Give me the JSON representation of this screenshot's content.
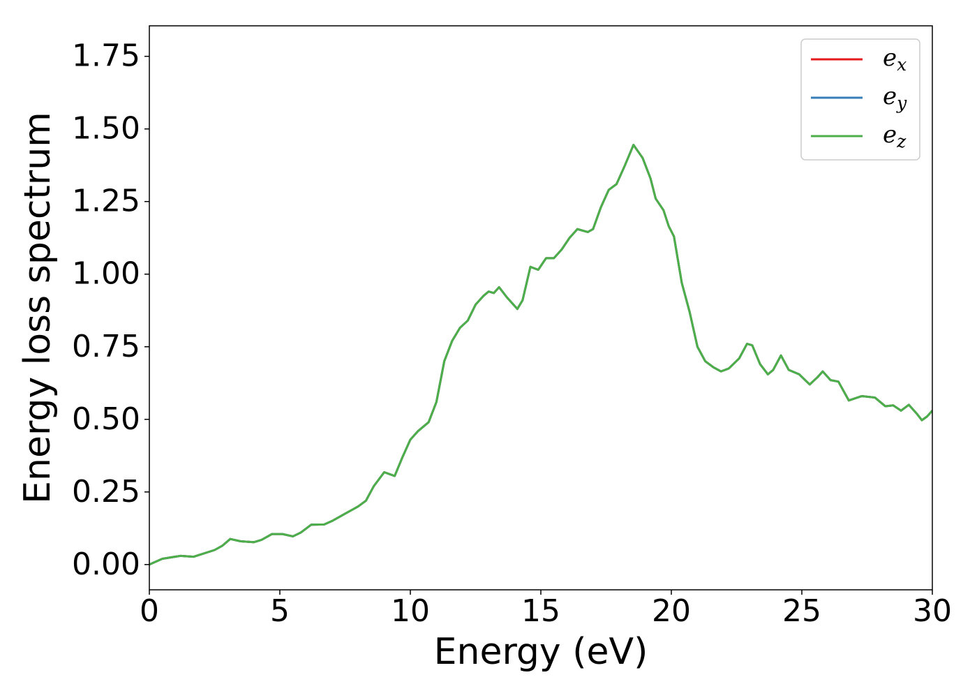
{
  "chart_data": {
    "type": "line",
    "xlabel": "Energy (eV)",
    "ylabel": "Energy loss spectrum",
    "x": [
      0,
      0.5,
      1.2,
      1.7,
      2.5,
      2.8,
      3.1,
      3.5,
      4.0,
      4.3,
      4.7,
      5.1,
      5.5,
      5.8,
      6.2,
      6.7,
      7.0,
      7.5,
      8.0,
      8.3,
      8.6,
      9.0,
      9.4,
      9.7,
      10.0,
      10.3,
      10.7,
      11.0,
      11.3,
      11.6,
      11.9,
      12.2,
      12.5,
      12.8,
      13.0,
      13.2,
      13.4,
      13.7,
      14.1,
      14.3,
      14.6,
      14.9,
      15.2,
      15.5,
      15.8,
      16.1,
      16.4,
      16.8,
      17.0,
      17.3,
      17.6,
      17.9,
      18.2,
      18.55,
      18.9,
      19.2,
      19.4,
      19.7,
      19.9,
      20.1,
      20.4,
      20.7,
      21.0,
      21.3,
      21.6,
      21.9,
      22.2,
      22.6,
      22.9,
      23.1,
      23.4,
      23.7,
      23.9,
      24.2,
      24.5,
      24.9,
      25.3,
      25.6,
      25.8,
      26.1,
      26.4,
      26.8,
      27.3,
      27.8,
      28.2,
      28.5,
      28.8,
      29.1,
      29.4,
      29.6,
      29.8,
      30.0
    ],
    "series": [
      {
        "name": "ex",
        "color": "#e41a1c",
        "values": [
          0.0,
          0.02,
          0.03,
          0.027,
          0.05,
          0.065,
          0.088,
          0.08,
          0.077,
          0.085,
          0.105,
          0.105,
          0.097,
          0.11,
          0.137,
          0.138,
          0.15,
          0.175,
          0.2,
          0.22,
          0.27,
          0.318,
          0.305,
          0.37,
          0.43,
          0.46,
          0.49,
          0.56,
          0.7,
          0.77,
          0.815,
          0.84,
          0.895,
          0.925,
          0.94,
          0.935,
          0.955,
          0.92,
          0.88,
          0.91,
          1.025,
          1.015,
          1.055,
          1.055,
          1.085,
          1.125,
          1.155,
          1.145,
          1.155,
          1.23,
          1.29,
          1.31,
          1.37,
          1.445,
          1.4,
          1.33,
          1.26,
          1.22,
          1.165,
          1.13,
          0.97,
          0.87,
          0.75,
          0.7,
          0.68,
          0.665,
          0.675,
          0.71,
          0.76,
          0.755,
          0.69,
          0.655,
          0.67,
          0.72,
          0.67,
          0.655,
          0.62,
          0.645,
          0.665,
          0.635,
          0.63,
          0.565,
          0.58,
          0.575,
          0.545,
          0.548,
          0.53,
          0.55,
          0.52,
          0.497,
          0.51,
          0.53
        ]
      },
      {
        "name": "ey",
        "color": "#377eb8",
        "values": [
          0.0,
          0.02,
          0.03,
          0.027,
          0.05,
          0.065,
          0.088,
          0.08,
          0.077,
          0.085,
          0.105,
          0.105,
          0.097,
          0.11,
          0.137,
          0.138,
          0.15,
          0.175,
          0.2,
          0.22,
          0.27,
          0.318,
          0.305,
          0.37,
          0.43,
          0.46,
          0.49,
          0.56,
          0.7,
          0.77,
          0.815,
          0.84,
          0.895,
          0.925,
          0.94,
          0.935,
          0.955,
          0.92,
          0.88,
          0.91,
          1.025,
          1.015,
          1.055,
          1.055,
          1.085,
          1.125,
          1.155,
          1.145,
          1.155,
          1.23,
          1.29,
          1.31,
          1.37,
          1.445,
          1.4,
          1.33,
          1.26,
          1.22,
          1.165,
          1.13,
          0.97,
          0.87,
          0.75,
          0.7,
          0.68,
          0.665,
          0.675,
          0.71,
          0.76,
          0.755,
          0.69,
          0.655,
          0.67,
          0.72,
          0.67,
          0.655,
          0.62,
          0.645,
          0.665,
          0.635,
          0.63,
          0.565,
          0.58,
          0.575,
          0.545,
          0.548,
          0.53,
          0.55,
          0.52,
          0.497,
          0.51,
          0.53
        ]
      },
      {
        "name": "ez",
        "color": "#4daf4a",
        "values": [
          0.0,
          0.02,
          0.03,
          0.027,
          0.05,
          0.065,
          0.088,
          0.08,
          0.077,
          0.085,
          0.105,
          0.105,
          0.097,
          0.11,
          0.137,
          0.138,
          0.15,
          0.175,
          0.2,
          0.22,
          0.27,
          0.318,
          0.305,
          0.37,
          0.43,
          0.46,
          0.49,
          0.56,
          0.7,
          0.77,
          0.815,
          0.84,
          0.895,
          0.925,
          0.94,
          0.935,
          0.955,
          0.92,
          0.88,
          0.91,
          1.025,
          1.015,
          1.055,
          1.055,
          1.085,
          1.125,
          1.155,
          1.145,
          1.155,
          1.23,
          1.29,
          1.31,
          1.37,
          1.445,
          1.4,
          1.33,
          1.26,
          1.22,
          1.165,
          1.13,
          0.97,
          0.87,
          0.75,
          0.7,
          0.68,
          0.665,
          0.675,
          0.71,
          0.76,
          0.755,
          0.69,
          0.655,
          0.67,
          0.72,
          0.67,
          0.655,
          0.62,
          0.645,
          0.665,
          0.635,
          0.63,
          0.565,
          0.58,
          0.575,
          0.545,
          0.548,
          0.53,
          0.55,
          0.52,
          0.497,
          0.51,
          0.53
        ]
      }
    ],
    "xlim": [
      0,
      30
    ],
    "xticks": [
      0,
      5,
      10,
      15,
      20,
      25,
      30
    ],
    "ylim": [
      -0.087,
      1.855
    ],
    "yticks": [
      {
        "value": 0,
        "label": "0.00"
      },
      {
        "value": 0.25,
        "label": "0.25"
      },
      {
        "value": 0.5,
        "label": "0.50"
      },
      {
        "value": 0.75,
        "label": "0.75"
      },
      {
        "value": 1,
        "label": "1.00"
      },
      {
        "value": 1.25,
        "label": "1.25"
      },
      {
        "value": 1.5,
        "label": "1.50"
      },
      {
        "value": 1.75,
        "label": "1.75"
      }
    ],
    "legend": "upper right",
    "grid": false
  }
}
